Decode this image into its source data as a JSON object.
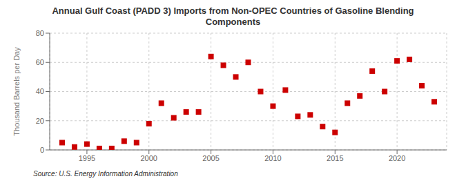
{
  "chart_data": {
    "type": "scatter",
    "title": "Annual Gulf Coast (PADD 3) Imports from Non-OPEC Countries of Gasoline Blending\nComponents",
    "ylabel": "Thousand Barrels per Day",
    "annotations": [
      "Source: U.S. Energy Information Administration"
    ],
    "x": [
      1993,
      1994,
      1995,
      1996,
      1997,
      1998,
      1999,
      2000,
      2001,
      2002,
      2003,
      2004,
      2005,
      2006,
      2007,
      2008,
      2009,
      2010,
      2011,
      2012,
      2013,
      2014,
      2015,
      2016,
      2017,
      2018,
      2019,
      2020,
      2021,
      2022,
      2023
    ],
    "values": [
      5,
      2,
      4,
      1,
      1,
      6,
      5,
      18,
      32,
      22,
      26,
      26,
      64,
      58,
      50,
      60,
      40,
      30,
      41,
      23,
      24,
      16,
      12,
      32,
      37,
      54,
      40,
      61,
      62,
      44,
      33
    ],
    "color": "#cc0000",
    "marker": "square",
    "xlim": [
      1992,
      2024
    ],
    "xticks": [
      1995,
      2000,
      2005,
      2010,
      2015,
      2020
    ],
    "ylim": [
      0,
      80
    ],
    "yticks": [
      0,
      20,
      40,
      60,
      80
    ],
    "grid": true
  }
}
